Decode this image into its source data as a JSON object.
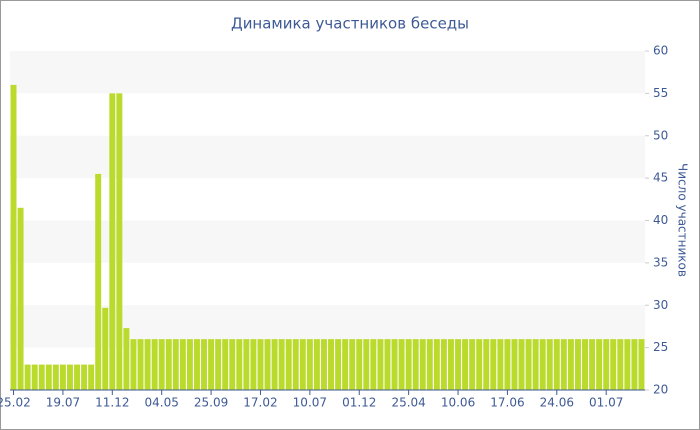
{
  "chart_data": {
    "type": "bar",
    "title": "Динамика участников беседы",
    "ylabel": "Число участников",
    "color": "#bada2c",
    "grid": true,
    "categories": [
      "25.02",
      null,
      null,
      null,
      null,
      null,
      null,
      "19.07",
      null,
      null,
      null,
      null,
      null,
      null,
      "11.12",
      null,
      null,
      null,
      null,
      null,
      null,
      "04.05",
      null,
      null,
      null,
      null,
      null,
      null,
      "25.09",
      null,
      null,
      null,
      null,
      null,
      null,
      "17.02",
      null,
      null,
      null,
      null,
      null,
      null,
      "10.07",
      null,
      null,
      null,
      null,
      null,
      null,
      "01.12",
      null,
      null,
      null,
      null,
      null,
      null,
      "25.04",
      null,
      null,
      null,
      null,
      null,
      null,
      "10.06",
      null,
      null,
      null,
      null,
      null,
      null,
      "17.06",
      null,
      null,
      null,
      null,
      null,
      null,
      "24.06",
      null,
      null,
      null,
      null,
      null,
      null,
      "01.07",
      null,
      null,
      null,
      null,
      null
    ],
    "values": [
      56,
      41.5,
      23,
      23,
      23,
      23,
      23,
      23,
      23,
      23,
      23,
      23,
      45.5,
      29.7,
      55,
      55,
      27.3,
      26,
      26,
      26,
      26,
      26,
      26,
      26,
      26,
      26,
      26,
      26,
      26,
      26,
      26,
      26,
      26,
      26,
      26,
      26,
      26,
      26,
      26,
      26,
      26,
      26,
      26,
      26,
      26,
      26,
      26,
      26,
      26,
      26,
      26,
      26,
      26,
      26,
      26,
      26,
      26,
      26,
      26,
      26,
      26,
      26,
      26,
      26,
      26,
      26,
      26,
      26,
      26,
      26,
      26,
      26,
      26,
      26,
      26,
      26,
      26,
      26,
      26,
      26,
      26,
      26,
      26,
      26,
      26,
      26,
      26,
      26,
      26,
      26
    ],
    "ylim": [
      20,
      60
    ],
    "yticks": [
      20,
      25,
      30,
      35,
      40,
      45,
      50,
      55,
      60
    ]
  }
}
